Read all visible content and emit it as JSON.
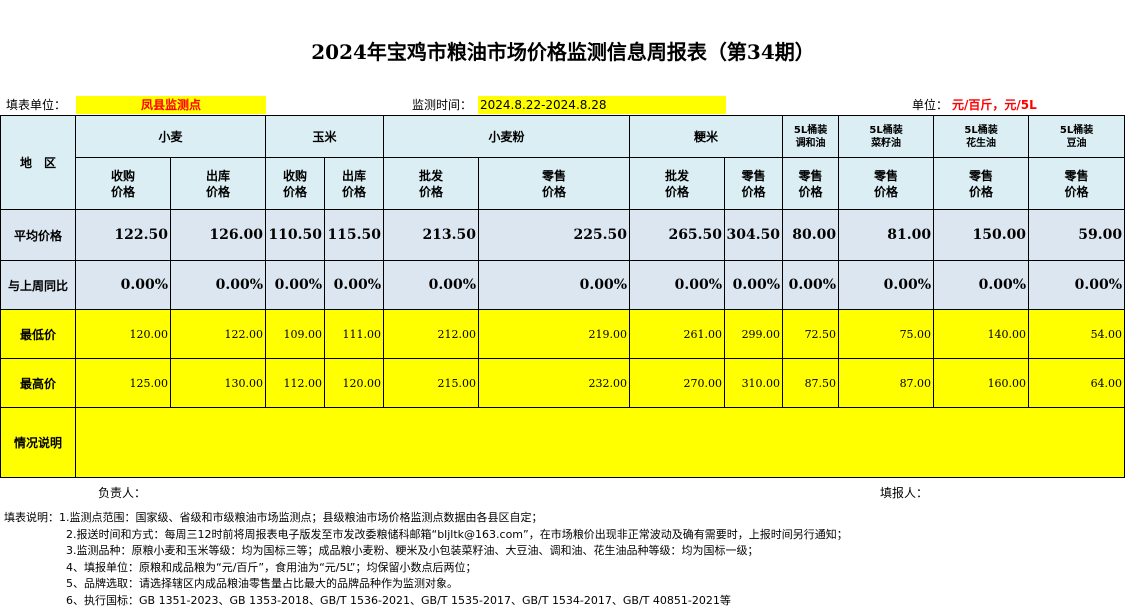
{
  "title": "2024年宝鸡市粮油市场价格监测信息周报表（第34期）",
  "info": {
    "unit_label": "填表单位：",
    "unit_value": "凤县监测点",
    "time_label": "监测时间：",
    "time_value": "2024.8.22-2024.8.28",
    "measure_label": "单位：",
    "measure_value": "元/百斤，元/5L"
  },
  "header": {
    "region": "地　区",
    "groups": [
      "小麦",
      "玉米",
      "小麦粉",
      "粳米",
      "5L桶装\n调和油",
      "5L桶装\n菜籽油",
      "5L桶装\n花生油",
      "5L桶装\n豆油"
    ],
    "subcols": [
      "收购\n价格",
      "出库\n价格",
      "收购\n价格",
      "出库\n价格",
      "批发\n价格",
      "零售\n价格",
      "批发\n价格",
      "零售\n价格",
      "零售\n价格",
      "零售\n价格",
      "零售\n价格",
      "零售\n价格"
    ]
  },
  "rows": {
    "avg": {
      "label": "平均价格",
      "values": [
        "122.50",
        "126.00",
        "110.50",
        "115.50",
        "213.50",
        "225.50",
        "265.50",
        "304.50",
        "80.00",
        "81.00",
        "150.00",
        "59.00"
      ]
    },
    "yoy": {
      "label": "与上周同比",
      "values": [
        "0.00%",
        "0.00%",
        "0.00%",
        "0.00%",
        "0.00%",
        "0.00%",
        "0.00%",
        "0.00%",
        "0.00%",
        "0.00%",
        "0.00%",
        "0.00%"
      ]
    },
    "min": {
      "label": "最低价",
      "values": [
        "120.00",
        "122.00",
        "109.00",
        "111.00",
        "212.00",
        "219.00",
        "261.00",
        "299.00",
        "72.50",
        "75.00",
        "140.00",
        "54.00"
      ]
    },
    "max": {
      "label": "最高价",
      "values": [
        "125.00",
        "130.00",
        "112.00",
        "120.00",
        "215.00",
        "232.00",
        "270.00",
        "310.00",
        "87.50",
        "87.00",
        "160.00",
        "64.00"
      ]
    },
    "note": {
      "label": "情况说明",
      "value": ""
    }
  },
  "sign": {
    "leader": "负责人：",
    "filler": "填报人："
  },
  "notes": [
    "填表说明：1.监测点范围：国家级、省级和市级粮油市场监测点；县级粮油市场价格监测点数据由各县区自定；",
    "2.报送时间和方式：每周三12时前将周报表电子版发至市发改委粮储科邮箱“bljltk@163.com”，在市场粮价出现非正常波动及确有需要时，上报时间另行通知；",
    "3.监测品种：原粮小麦和玉米等级：均为国标三等；成品粮小麦粉、粳米及小包装菜籽油、大豆油、调和油、花生油品种等级：均为国标一级；",
    "4、填报单位：原粮和成品粮为“元/百斤”，食用油为“元/5L”；均保留小数点后两位；",
    "5、品牌选取：请选择辖区内成品粮油零售量占比最大的品牌品种作为监测对象。",
    "6、执行国标：GB 1351-2023、GB 1353-2018、GB/T 1536-2021、GB/T 1535-2017、GB/T 1534-2017、GB/T 40851-2021等"
  ],
  "colors": {
    "highlight": "#ffff00",
    "header_bg": "#daeef3",
    "avg_bg": "#dce6f1",
    "unit_text": "#ff0000"
  }
}
